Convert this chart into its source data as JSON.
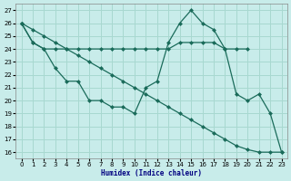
{
  "xlabel": "Humidex (Indice chaleur)",
  "bg_color": "#c8ecea",
  "grid_color": "#a8d8d0",
  "line_color": "#1a6b5a",
  "xlim": [
    -0.5,
    23.5
  ],
  "ylim": [
    15.5,
    27.5
  ],
  "yticks": [
    16,
    17,
    18,
    19,
    20,
    21,
    22,
    23,
    24,
    25,
    26,
    27
  ],
  "xticks": [
    0,
    1,
    2,
    3,
    4,
    5,
    6,
    7,
    8,
    9,
    10,
    11,
    12,
    13,
    14,
    15,
    16,
    17,
    18,
    19,
    20,
    21,
    22,
    23
  ],
  "line1_x": [
    0,
    1,
    2,
    3,
    4,
    5,
    6,
    7,
    8,
    9,
    10,
    11,
    12,
    13,
    14,
    15,
    16,
    17,
    18,
    19,
    20
  ],
  "line1_y": [
    26,
    24.5,
    24,
    24,
    24,
    24,
    24,
    24,
    24,
    24,
    24,
    24,
    24,
    24,
    24.5,
    24.5,
    24.5,
    24.5,
    24,
    24,
    24
  ],
  "line2_x": [
    0,
    1,
    2,
    3,
    4,
    5,
    6,
    7,
    8,
    9,
    10,
    11,
    12,
    13,
    14,
    15,
    16,
    17,
    18,
    19,
    20,
    21,
    22,
    23
  ],
  "line2_y": [
    26,
    24.5,
    24,
    22.5,
    21.5,
    21.5,
    20,
    20,
    19.5,
    19.5,
    19,
    21,
    21.5,
    24.5,
    26,
    27,
    26,
    25.5,
    24,
    20.5,
    20,
    20.5,
    19,
    16
  ],
  "line3_x": [
    0,
    1,
    2,
    3,
    4,
    5,
    6,
    7,
    8,
    9,
    10,
    11,
    12,
    13,
    14,
    15,
    16,
    17,
    18,
    19,
    20,
    21,
    22,
    23
  ],
  "line3_y": [
    26,
    25.5,
    25,
    24.5,
    24,
    23.5,
    23,
    22.5,
    22,
    21.5,
    21,
    20.5,
    20,
    19.5,
    19,
    18.5,
    18,
    17.5,
    17,
    16.5,
    16.2,
    16.0,
    16.0,
    16.0
  ]
}
